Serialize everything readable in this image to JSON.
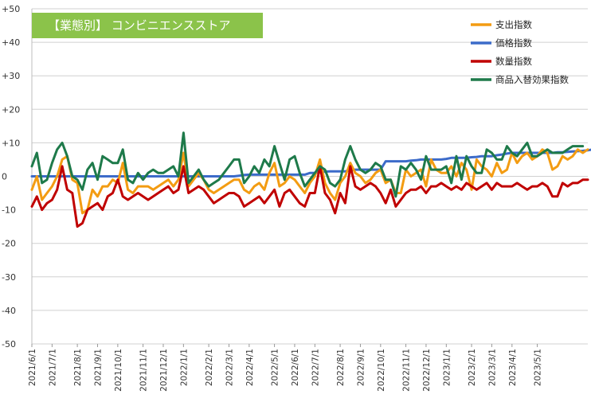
{
  "chart_data": {
    "type": "line",
    "title": "【業態別】 コンビニエンスストア",
    "ylim": [
      -50,
      50
    ],
    "yticks": [
      {
        "v": 50,
        "label": "+50"
      },
      {
        "v": 40,
        "label": "+40"
      },
      {
        "v": 30,
        "label": "+30"
      },
      {
        "v": 20,
        "label": "+20"
      },
      {
        "v": 10,
        "label": "+10"
      },
      {
        "v": 0,
        "label": "0"
      },
      {
        "v": -10,
        "label": "-10"
      },
      {
        "v": -20,
        "label": "-20"
      },
      {
        "v": -30,
        "label": "-30"
      },
      {
        "v": -40,
        "label": "-40"
      },
      {
        "v": -50,
        "label": "-50"
      }
    ],
    "x_tick_labels": [
      "2021/6/1",
      "2021/7/1",
      "2021/8/1",
      "2021/9/1",
      "2021/10/1",
      "2021/11/1",
      "2021/12/1",
      "2022/1/1",
      "2022/2/1",
      "2022/3/1",
      "2022/4/1",
      "2022/5/1",
      "2022/6/1",
      "2022/7/1",
      "2022/8/1",
      "2022/9/1",
      "2022/10/1",
      "2022/11/1",
      "2022/12/1",
      "2023/1/1",
      "2023/2/1",
      "2023/3/1",
      "2023/4/1",
      "2023/5/1"
    ],
    "x_tick_index": [
      0,
      4,
      9,
      13,
      17,
      22,
      26,
      30,
      35,
      39,
      43,
      48,
      52,
      56,
      61,
      65,
      69,
      74,
      78,
      82,
      87,
      91,
      95,
      100
    ],
    "grid": true,
    "legend_position": "top-right",
    "series": [
      {
        "name": "支出指数",
        "color": "#f39c12",
        "values": [
          -4,
          0,
          -7,
          -5,
          -3,
          0,
          5,
          6,
          -1,
          -2,
          -11,
          -10,
          -4,
          -6,
          -3,
          -3,
          -1,
          -2,
          4,
          -4,
          -5,
          -3,
          -3,
          -3,
          -4,
          -3,
          -2,
          -1,
          -3,
          -1,
          7,
          -3,
          -1,
          1,
          -1,
          -4,
          -5,
          -4,
          -3,
          -2,
          -1,
          -1,
          -4,
          -5,
          -3,
          -2,
          -4,
          1,
          4,
          -3,
          -2,
          0,
          -1,
          -3,
          -5,
          -2,
          0,
          5,
          -2,
          -5,
          -7,
          -2,
          0,
          4,
          1,
          0,
          -2,
          -1,
          1,
          2,
          -2,
          -1,
          -5,
          -5,
          2,
          0,
          1,
          2,
          -3,
          5,
          2,
          1,
          1,
          3,
          0,
          4,
          2,
          -4,
          5,
          3,
          2,
          0,
          4,
          1,
          2,
          7,
          4,
          6,
          7,
          5,
          6,
          8,
          7,
          2,
          3,
          6,
          5,
          6,
          8,
          7,
          8
        ]
      },
      {
        "name": "価格指数",
        "color": "#3c6bc9",
        "values": [
          0,
          0,
          0,
          0,
          0,
          0,
          0,
          0,
          0,
          0,
          0,
          0,
          0,
          0,
          0,
          0,
          0,
          0,
          0,
          0,
          0,
          0,
          0,
          0,
          0,
          0,
          0,
          0,
          0,
          0,
          0,
          0,
          0,
          0,
          0,
          0,
          0,
          0,
          0,
          0,
          0,
          0.2,
          0.4,
          0.5,
          0.5,
          0.5,
          0.5,
          0.5,
          0.5,
          0.5,
          0.5,
          0.5,
          0.5,
          0.5,
          0.5,
          1,
          1,
          1.2,
          1.4,
          1.5,
          1.5,
          1.5,
          1.5,
          1.8,
          2,
          2,
          2,
          2,
          2,
          2,
          4.5,
          4.5,
          4.5,
          4.5,
          4.5,
          4.7,
          4.8,
          5,
          5,
          5,
          5,
          5,
          5.2,
          5.5,
          5.5,
          5.5,
          5.5,
          5.7,
          5.8,
          6,
          6,
          6,
          6.3,
          6.5,
          6.8,
          7,
          7,
          7,
          7,
          7,
          7,
          7,
          7,
          7,
          7.2,
          7.2,
          7.3,
          7.4,
          7.5,
          7.6,
          7.8,
          8,
          8.2
        ]
      },
      {
        "name": "数量指数",
        "color": "#c00000",
        "values": [
          -9,
          -6,
          -10,
          -8,
          -7,
          -4,
          3,
          -4,
          -5,
          -15,
          -14,
          -10,
          -9,
          -8,
          -10,
          -6,
          -5,
          -1,
          -6,
          -7,
          -6,
          -5,
          -6,
          -7,
          -6,
          -5,
          -4,
          -3,
          -5,
          -4,
          3,
          -5,
          -4,
          -3,
          -4,
          -6,
          -8,
          -7,
          -6,
          -5,
          -5,
          -6,
          -9,
          -8,
          -7,
          -6,
          -8,
          -6,
          -4,
          -9,
          -5,
          -4,
          -6,
          -8,
          -9,
          -5,
          -5,
          3,
          -5,
          -7,
          -11,
          -5,
          -8,
          3,
          -3,
          -4,
          -3,
          -2,
          -3,
          -5,
          -8,
          -4,
          -9,
          -7,
          -5,
          -4,
          -4,
          -3,
          -5,
          -3,
          -3,
          -2,
          -3,
          -4,
          -3,
          -4,
          -2,
          -3,
          -4,
          -3,
          -2,
          -4,
          -2,
          -3,
          -3,
          -3,
          -2,
          -3,
          -4,
          -3,
          -3,
          -2,
          -3,
          -6,
          -6,
          -2,
          -3,
          -2,
          -2,
          -1,
          -1
        ]
      },
      {
        "name": "商品入替効果指数",
        "color": "#1e7a4a",
        "values": [
          3,
          7,
          -2,
          -1,
          4,
          8,
          10,
          6,
          0,
          -1,
          -4,
          2,
          4,
          -1,
          6,
          5,
          4,
          4,
          8,
          -1,
          -2,
          1,
          -1,
          1,
          2,
          1,
          1,
          2,
          3,
          0,
          13,
          -2,
          0,
          2,
          -1,
          -3,
          -2,
          -1,
          1,
          3,
          5,
          5,
          -2,
          0,
          3,
          1,
          5,
          3,
          9,
          4,
          -1,
          5,
          6,
          1,
          -3,
          -1,
          1,
          3,
          2,
          -2,
          -3,
          -1,
          5,
          9,
          5,
          2,
          1,
          2,
          4,
          3,
          -1,
          -1,
          -6,
          3,
          2,
          4,
          2,
          -1,
          6,
          2,
          2,
          2,
          3,
          -2,
          6,
          -1,
          6,
          3,
          1,
          1,
          8,
          7,
          5,
          5,
          9,
          7,
          6,
          8,
          10,
          6,
          6,
          7,
          8,
          7,
          7,
          7,
          8,
          9,
          9,
          9
        ]
      }
    ]
  }
}
